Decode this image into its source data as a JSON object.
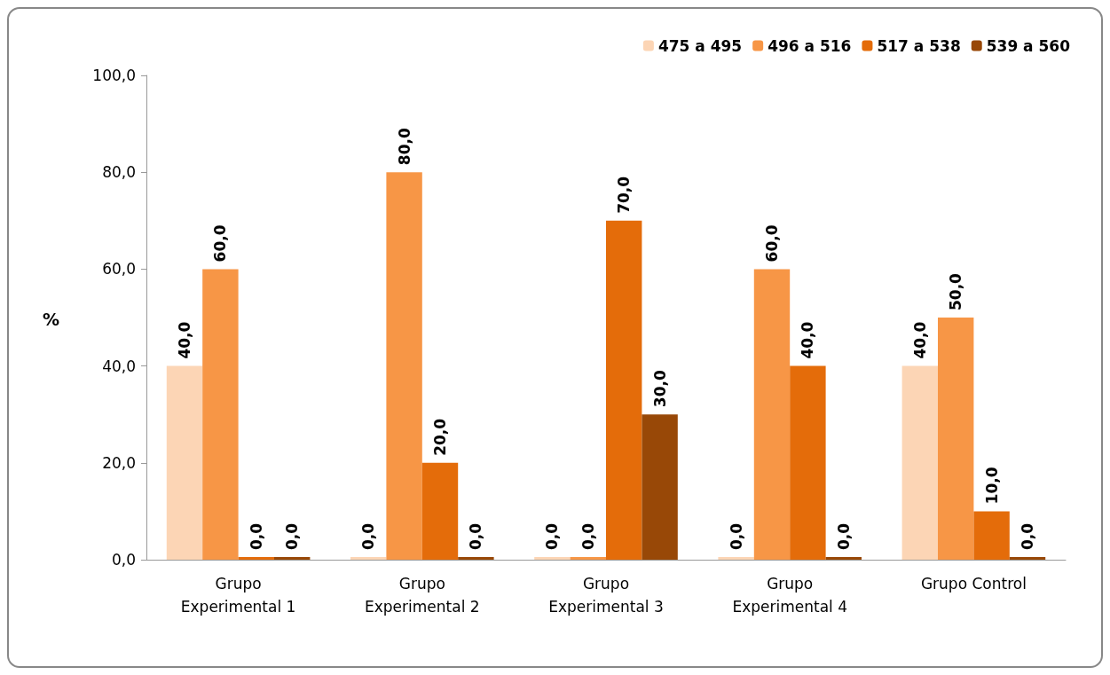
{
  "chart_data": {
    "type": "bar",
    "ylabel": "%",
    "categories": [
      "Grupo\nExperimental 1",
      "Grupo\nExperimental 2",
      "Grupo\nExperimental 3",
      "Grupo\nExperimental 4",
      "Grupo Control"
    ],
    "series": [
      {
        "name": "475 a 495",
        "color": "#fcd5b5",
        "values": [
          40,
          0,
          0,
          0,
          40
        ],
        "value_labels": [
          "40,0",
          "0,0",
          "0,0",
          "0,0",
          "40,0"
        ]
      },
      {
        "name": "496 a 516",
        "color": "#f79646",
        "values": [
          60,
          80,
          0,
          60,
          50
        ],
        "value_labels": [
          "60,0",
          "80,0",
          "0,0",
          "60,0",
          "50,0"
        ]
      },
      {
        "name": "517 a 538",
        "color": "#e46c0a",
        "values": [
          0,
          20,
          70,
          40,
          10
        ],
        "value_labels": [
          "0,0",
          "20,0",
          "70,0",
          "40,0",
          "10,0"
        ]
      },
      {
        "name": "539 a 560",
        "color": "#984807",
        "values": [
          0,
          0,
          30,
          0,
          0
        ],
        "value_labels": [
          "0,0",
          "0,0",
          "30,0",
          "0,0",
          "0,0"
        ]
      }
    ],
    "ylim": [
      0,
      100
    ],
    "yticks": [
      {
        "value": 0,
        "label": "0,0"
      },
      {
        "value": 20,
        "label": "20,0"
      },
      {
        "value": 40,
        "label": "40,0"
      },
      {
        "value": 60,
        "label": "60,0"
      },
      {
        "value": 80,
        "label": "80,0"
      },
      {
        "value": 100,
        "label": "100,0"
      }
    ],
    "grid": false,
    "legend": "top right"
  }
}
